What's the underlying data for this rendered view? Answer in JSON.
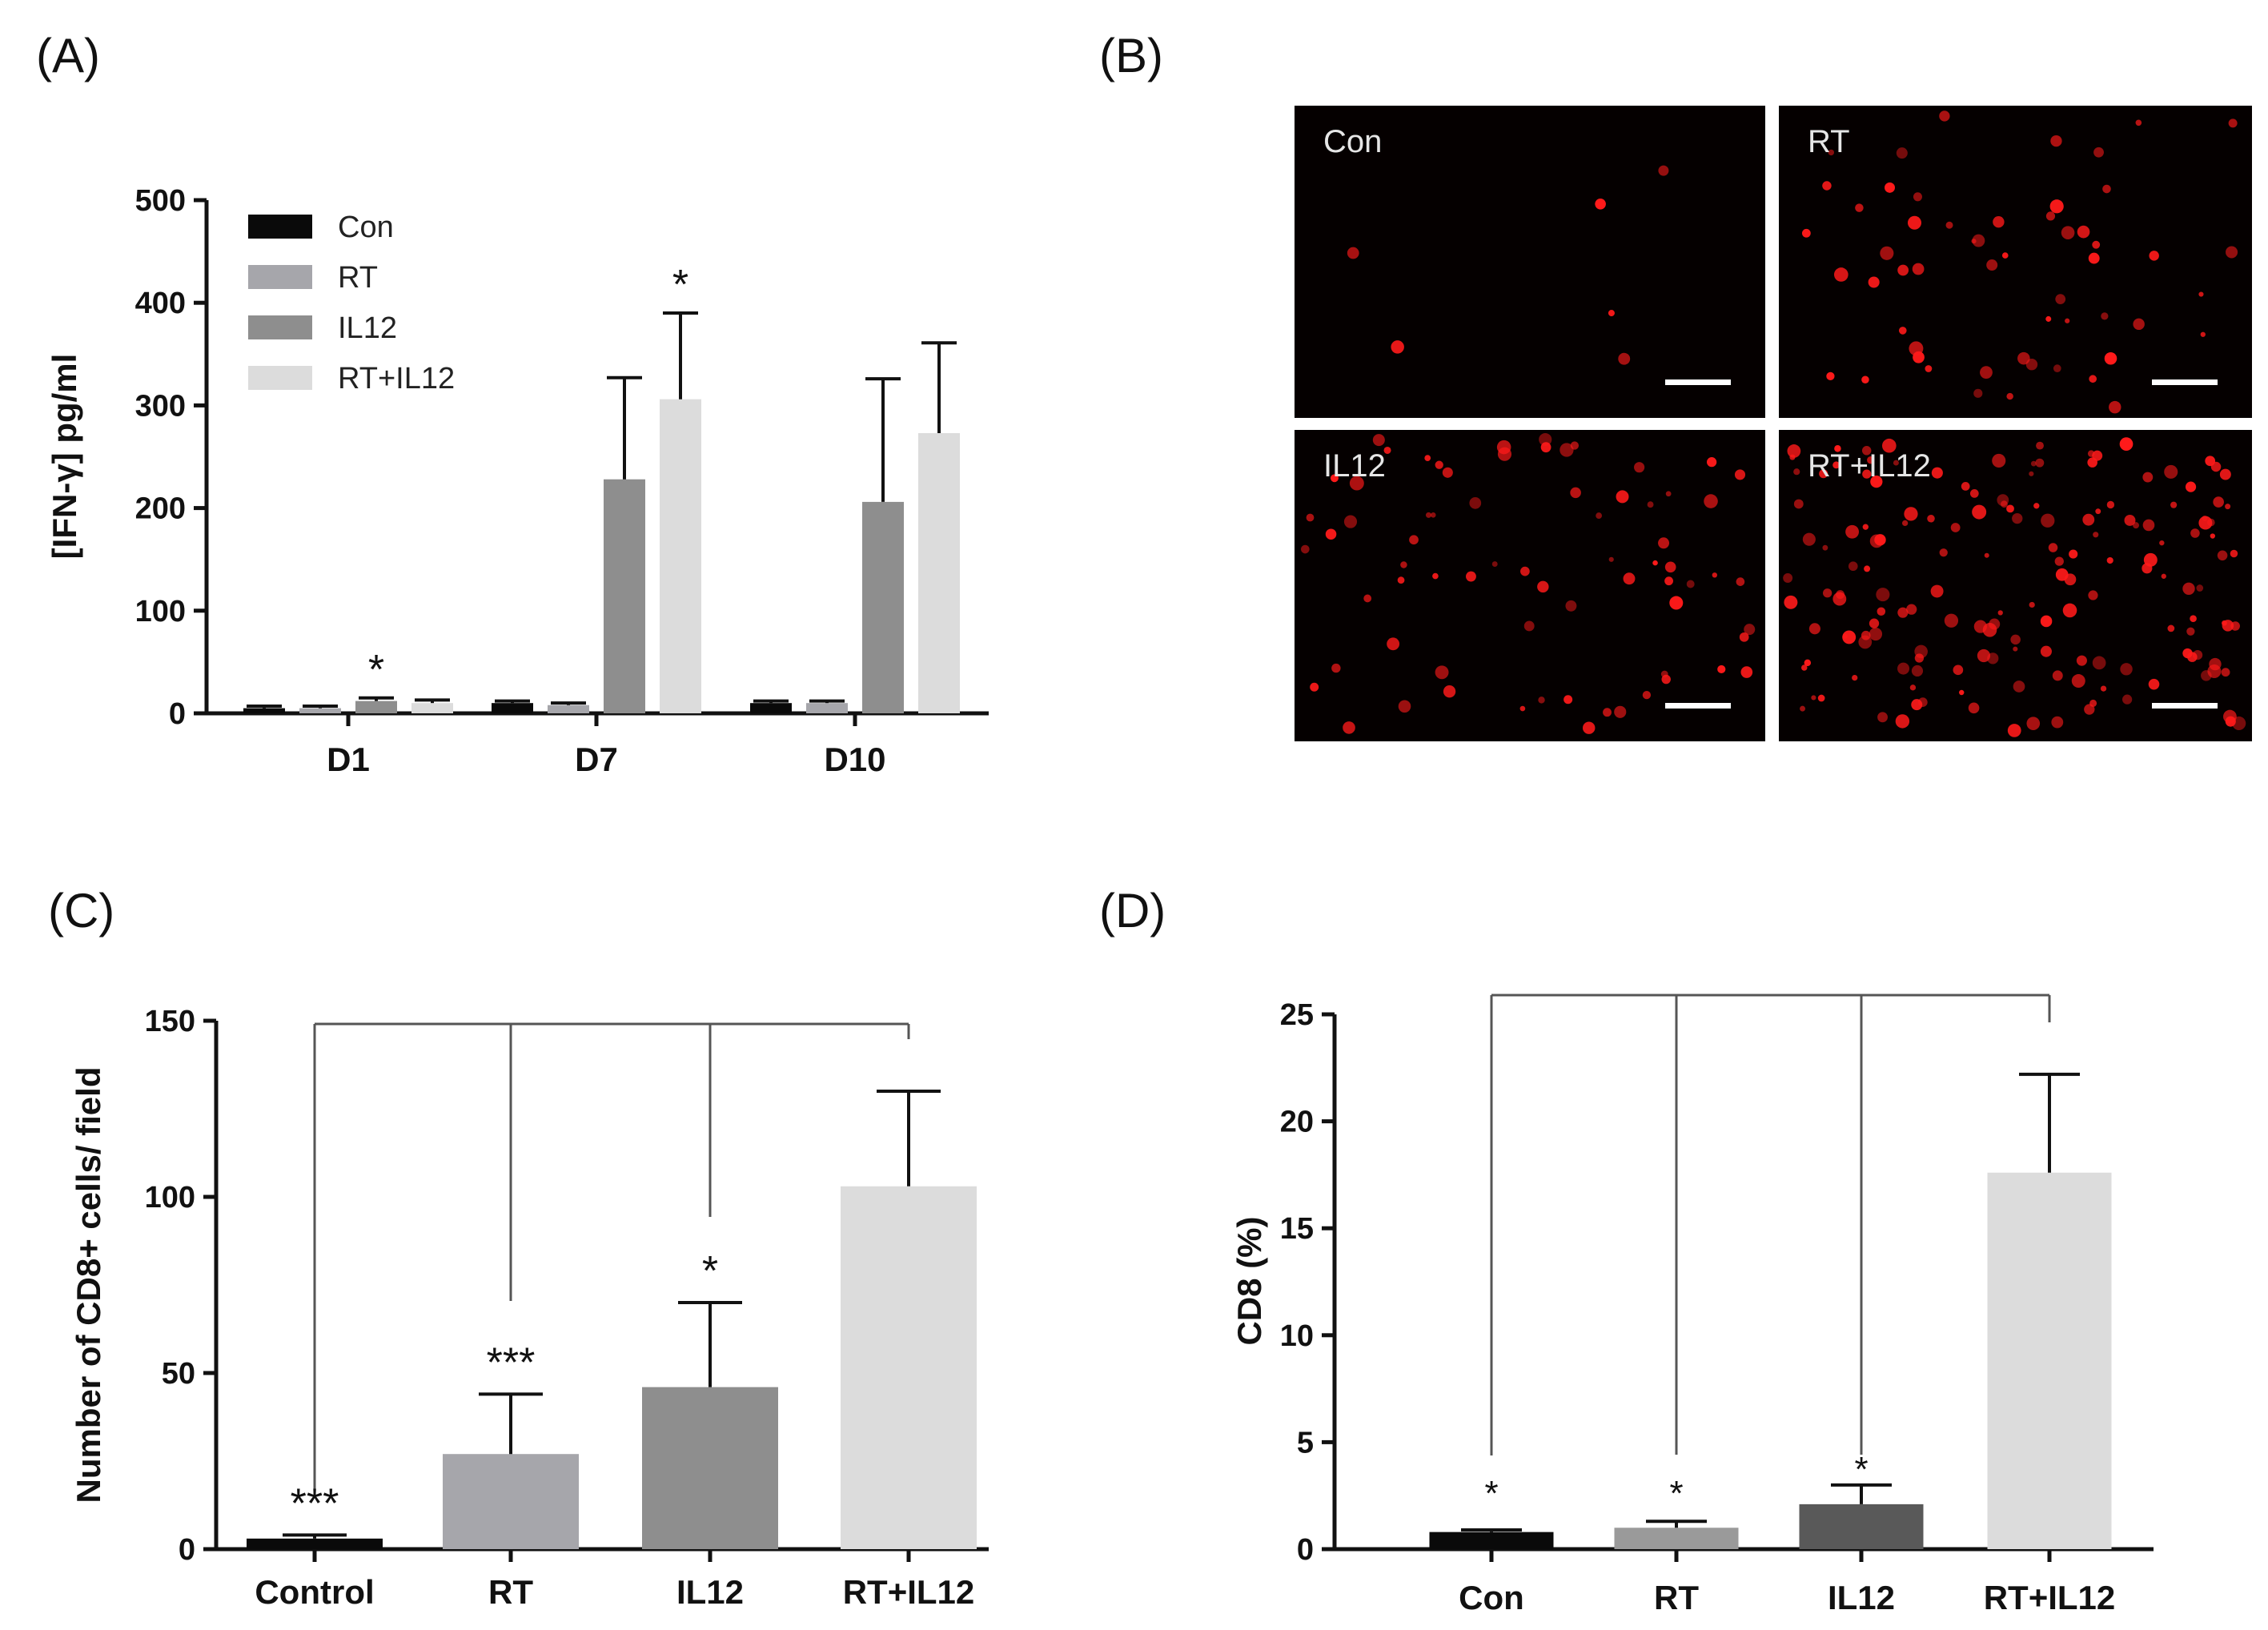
{
  "panels": {
    "a": "(A)",
    "b": "(B)",
    "c": "(C)",
    "d": "(D)"
  },
  "colors": {
    "Con": "#0a0a0a",
    "RT": "#a6a6ab",
    "IL12": "#8e8e8e",
    "RT+IL12": "#dcdcdc",
    "Control": "#0a0a0a",
    "RT_D": "#9a9a9a",
    "IL12_D": "#595959"
  },
  "chart_data": [
    {
      "panel": "A",
      "type": "bar",
      "ylabel": "[IFN-γ] pg/ml",
      "ylim": [
        0,
        500
      ],
      "yticks": [
        "0",
        "100",
        "200",
        "300",
        "400",
        "500"
      ],
      "categories": [
        "D1",
        "D7",
        "D10"
      ],
      "series": [
        {
          "name": "Con",
          "values": [
            5,
            10,
            10
          ],
          "errors": [
            2,
            2,
            2
          ]
        },
        {
          "name": "RT",
          "values": [
            5,
            8,
            10
          ],
          "errors": [
            2,
            2,
            2
          ]
        },
        {
          "name": "IL12",
          "values": [
            12,
            228,
            206
          ],
          "errors": [
            3,
            99,
            120
          ]
        },
        {
          "name": "RT+IL12",
          "values": [
            10,
            306,
            273
          ],
          "errors": [
            3,
            84,
            88
          ]
        }
      ],
      "significance": [
        {
          "category": "D1",
          "series": "IL12",
          "mark": "*"
        },
        {
          "category": "D7",
          "series": "RT+IL12",
          "mark": "*"
        }
      ],
      "legend": [
        "Con",
        "RT",
        "IL12",
        "RT+IL12"
      ]
    },
    {
      "panel": "C",
      "type": "bar",
      "ylabel": "Number of CD8+ cells/ field",
      "ylim": [
        0,
        150
      ],
      "yticks": [
        "0",
        "50",
        "100",
        "150"
      ],
      "categories": [
        "Control",
        "RT",
        "IL12",
        "RT+IL12"
      ],
      "values": [
        3,
        27,
        46,
        103
      ],
      "errors": [
        1,
        17,
        24,
        27
      ],
      "significance": [
        "***",
        "***",
        "*",
        ""
      ]
    },
    {
      "panel": "D",
      "type": "bar",
      "ylabel": "CD8 (%)",
      "ylim": [
        0,
        25
      ],
      "yticks": [
        "0",
        "5",
        "10",
        "15",
        "20",
        "25"
      ],
      "categories": [
        "Con",
        "RT",
        "IL12",
        "RT+IL12"
      ],
      "values": [
        0.8,
        1.0,
        2.1,
        17.6
      ],
      "errors": [
        0.1,
        0.3,
        0.9,
        4.6
      ],
      "significance": [
        "*",
        "*",
        "*",
        ""
      ]
    }
  ],
  "microscopy": [
    "Con",
    "RT",
    "IL12",
    "RT+IL12"
  ]
}
